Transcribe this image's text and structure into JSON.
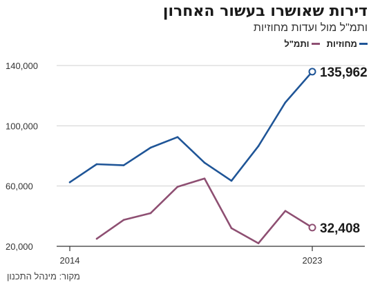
{
  "chart_data": {
    "type": "line",
    "title": "דירות שאושרו בעשור האחרון",
    "subtitle": "ותמ\"ל מול ועדות מחוזיות",
    "x": [
      2014,
      2015,
      2016,
      2017,
      2018,
      2019,
      2020,
      2021,
      2022,
      2023
    ],
    "xticks": [
      "2014",
      "2023"
    ],
    "ylim": [
      20000,
      140000
    ],
    "yticks": [
      "20,000",
      "60,000",
      "100,000",
      "140,000"
    ],
    "ytick_values": [
      20000,
      60000,
      100000,
      140000
    ],
    "grid": "horizontal",
    "legend_position": "top-right",
    "series": [
      {
        "name": "מחוזיות",
        "color": "#1f5597",
        "values": [
          62500,
          74500,
          73800,
          85500,
          92500,
          75500,
          63500,
          86500,
          115500,
          135962
        ],
        "end_label": "135,962"
      },
      {
        "name": "ותמ\"ל",
        "color": "#8e4f72",
        "values": [
          null,
          25000,
          37500,
          42000,
          59500,
          65000,
          32000,
          22000,
          43500,
          32408
        ],
        "end_label": "32,408"
      }
    ]
  },
  "source": "מקור: מינהל התכנון"
}
